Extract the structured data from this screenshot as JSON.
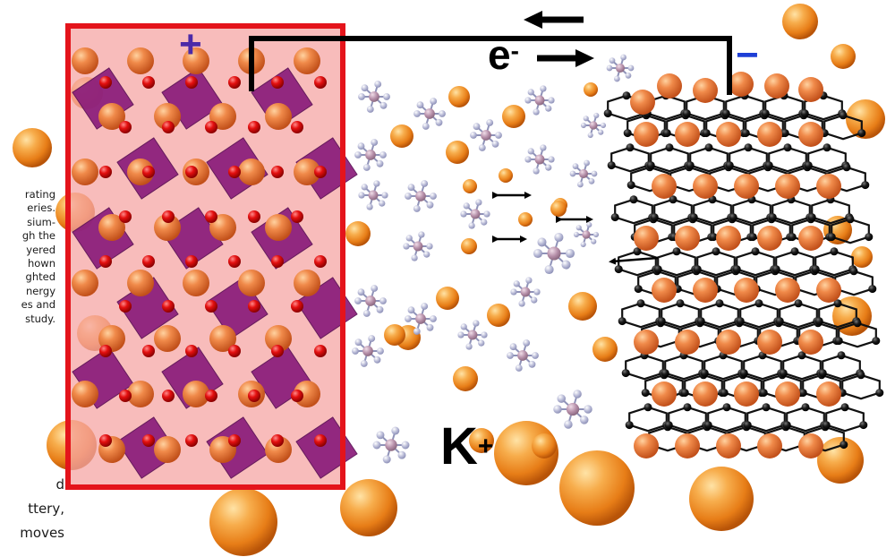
{
  "caption_lines": [
    "rating",
    "eries.",
    "sium-",
    "gh the",
    "yered",
    "hown",
    "ghted",
    "nergy",
    "es and",
    "study."
  ],
  "body_lines": [
    "d",
    "ttery,",
    "moves"
  ],
  "labels": {
    "positive": "+",
    "negative": "−",
    "electron": "e",
    "electron_sup": "-",
    "ion": "K",
    "ion_sup": "+"
  },
  "colors": {
    "cathode_fill": "#f6a6a4",
    "cathode_border": "#e4141b",
    "octahedron": "#8a1c7a",
    "oxygen": "#e01010",
    "potassium": "#ee8a1c",
    "carbon": "#111111",
    "pf6_center": "#b58ea8",
    "pf6_fluorine": "#b7b9d6",
    "circuit_wire": "#000000"
  }
}
